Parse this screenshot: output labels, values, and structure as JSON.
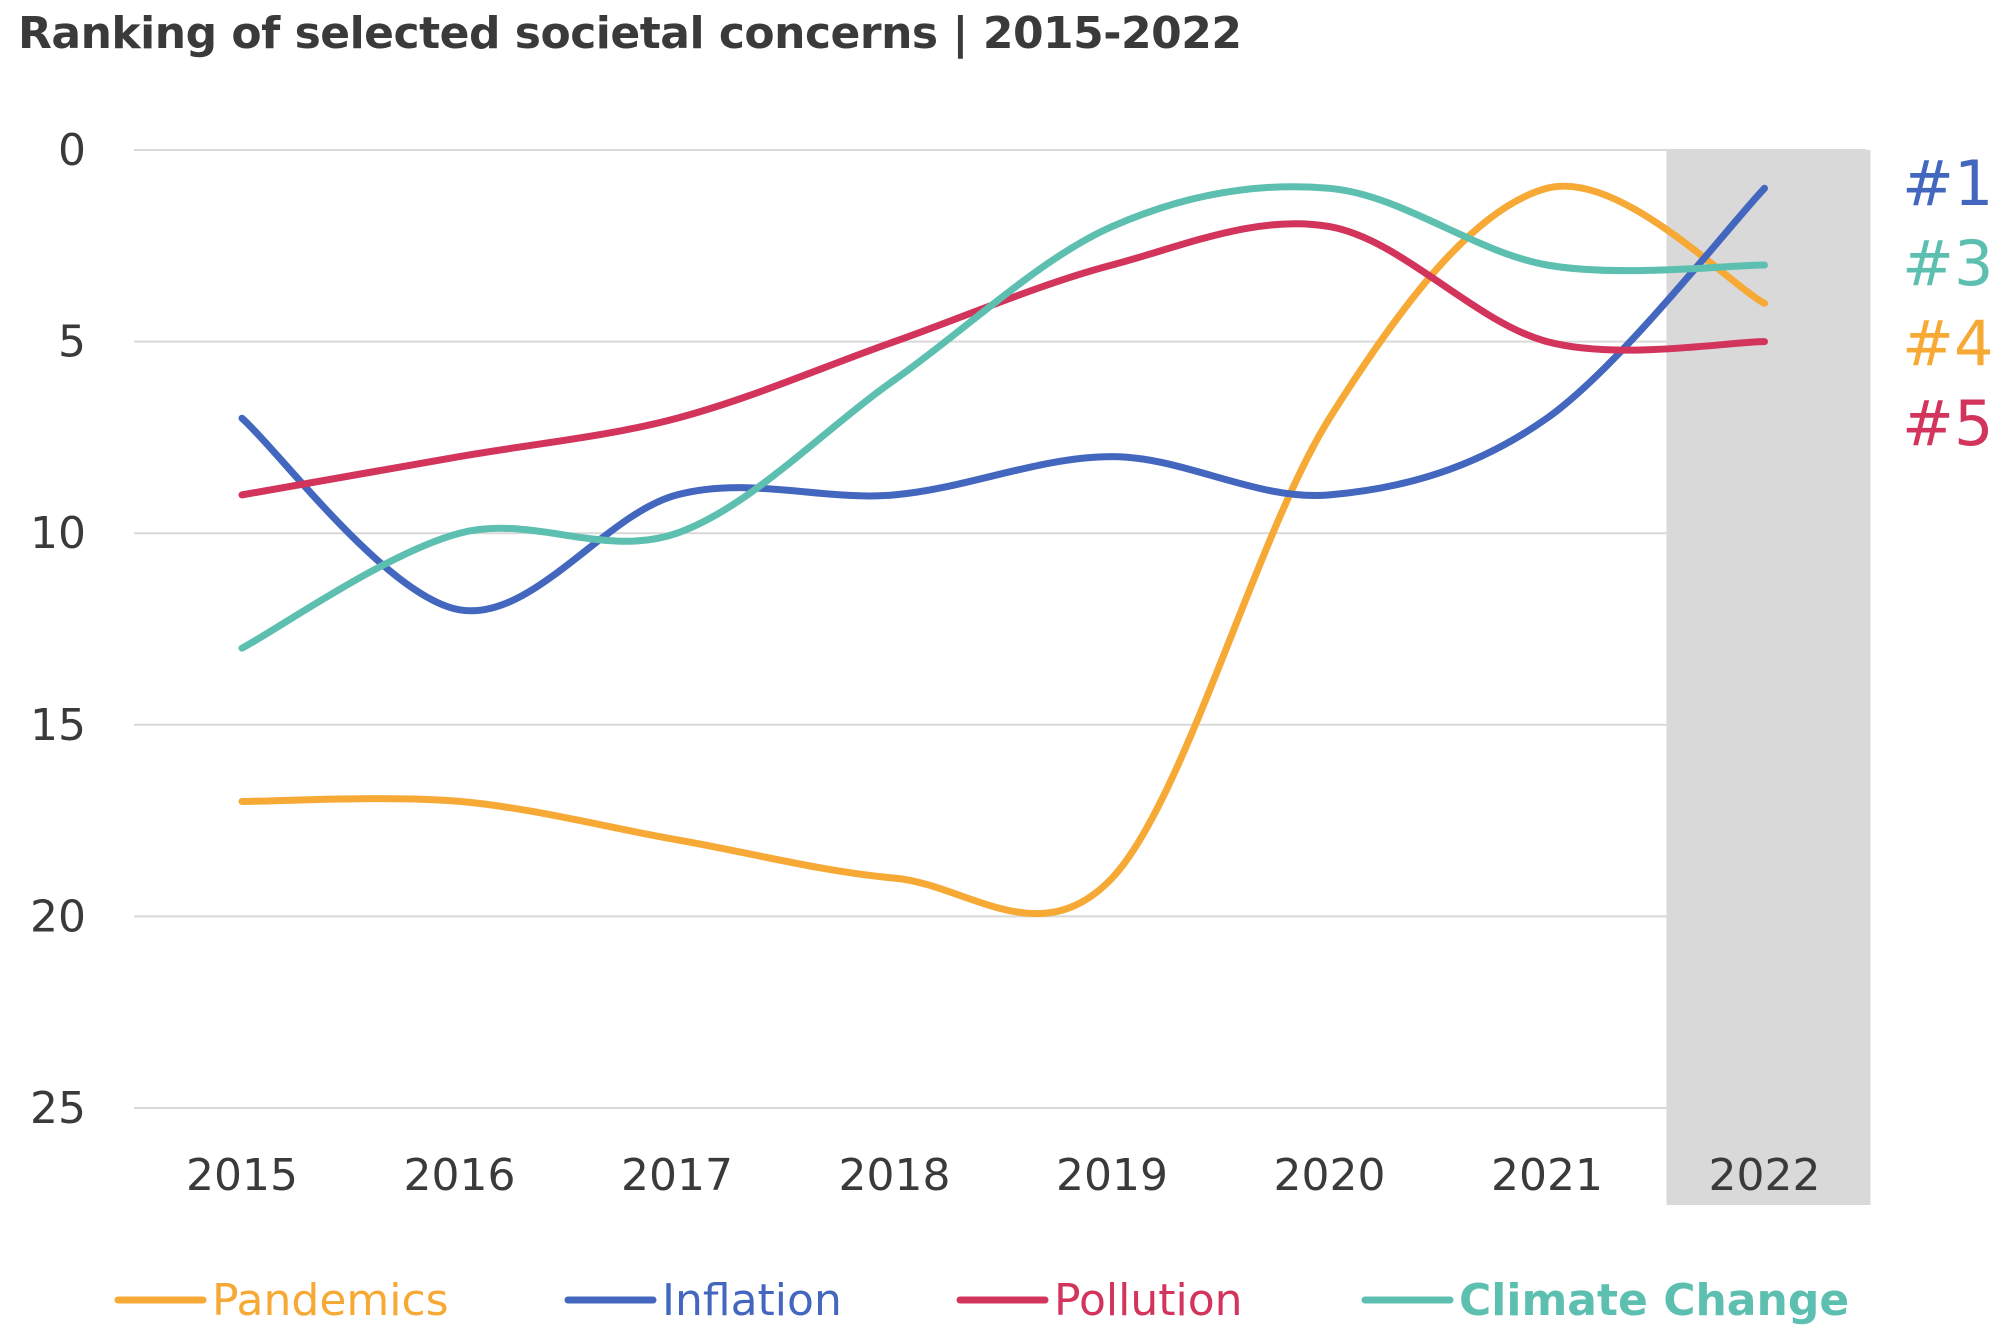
{
  "chart_data": {
    "type": "line",
    "title": "Ranking of selected societal concerns | 2015-2022",
    "xlabel": "",
    "ylabel": "",
    "x": [
      "2015",
      "2016",
      "2017",
      "2018",
      "2019",
      "2020",
      "2021",
      "2022"
    ],
    "y_ticks": [
      "0",
      "5",
      "10",
      "15",
      "20",
      "25"
    ],
    "ylim": [
      0,
      25
    ],
    "y_inverted": true,
    "grid": true,
    "highlight_category": "2022",
    "legend_position": "bottom",
    "series": [
      {
        "name": "Pandemics",
        "color": "#f7a935",
        "values": [
          17,
          17,
          18,
          19,
          19,
          7,
          1,
          4
        ]
      },
      {
        "name": "Inflation",
        "color": "#4366be",
        "values": [
          7,
          12,
          9,
          9,
          8,
          9,
          7,
          1
        ]
      },
      {
        "name": "Pollution",
        "color": "#d2345c",
        "values": [
          9,
          8,
          7,
          5,
          3,
          2,
          5,
          5
        ]
      },
      {
        "name": "Climate Change",
        "color": "#5dbfb0",
        "values": [
          13,
          10,
          10,
          6,
          2,
          1,
          3,
          3
        ]
      }
    ],
    "end_labels": [
      {
        "text": "#1",
        "color": "#4366be"
      },
      {
        "text": "#3",
        "color": "#5dbfb0"
      },
      {
        "text": "#4",
        "color": "#f7a935"
      },
      {
        "text": "#5",
        "color": "#d2345c"
      }
    ]
  }
}
